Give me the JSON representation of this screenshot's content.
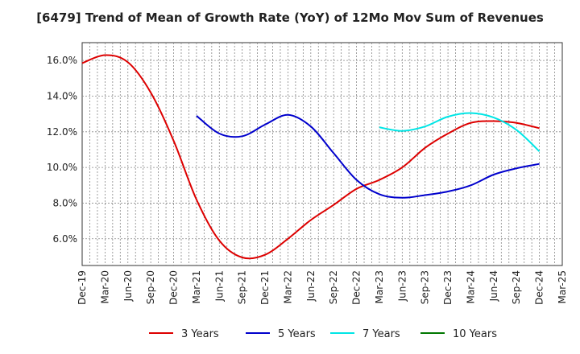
{
  "chart_data": {
    "type": "line",
    "title": "[6479]  Trend of Mean of Growth Rate (YoY) of 12Mo Mov Sum of Revenues",
    "xlabel": "",
    "ylabel": "",
    "x_ticks": [
      "Dec-19",
      "Mar-20",
      "Jun-20",
      "Sep-20",
      "Dec-20",
      "Mar-21",
      "Jun-21",
      "Sep-21",
      "Dec-21",
      "Mar-22",
      "Jun-22",
      "Sep-22",
      "Dec-22",
      "Mar-23",
      "Jun-23",
      "Sep-23",
      "Dec-23",
      "Mar-24",
      "Jun-24",
      "Sep-24",
      "Dec-24",
      "Mar-25"
    ],
    "y_ticks": [
      "6.0%",
      "8.0%",
      "10.0%",
      "12.0%",
      "14.0%",
      "16.0%"
    ],
    "y_tick_values": [
      6,
      8,
      10,
      12,
      14,
      16
    ],
    "ylim": [
      4.5,
      17.0
    ],
    "grid": "dotted",
    "legend_position": "bottom",
    "series": [
      {
        "name": "3 Years",
        "color": "#dd0000",
        "points": [
          [
            0,
            15.85
          ],
          [
            1,
            16.3
          ],
          [
            2,
            15.9
          ],
          [
            3,
            14.2
          ],
          [
            4,
            11.5
          ],
          [
            5,
            8.2
          ],
          [
            6,
            5.9
          ],
          [
            7,
            4.95
          ],
          [
            8,
            5.1
          ],
          [
            9,
            6.0
          ],
          [
            10,
            7.05
          ],
          [
            11,
            7.9
          ],
          [
            12,
            8.8
          ],
          [
            13,
            9.3
          ],
          [
            14,
            10.0
          ],
          [
            15,
            11.1
          ],
          [
            16,
            11.9
          ],
          [
            17,
            12.5
          ],
          [
            18,
            12.6
          ],
          [
            19,
            12.5
          ],
          [
            20,
            12.2
          ]
        ]
      },
      {
        "name": "5 Years",
        "color": "#0000cc",
        "points": [
          [
            5,
            12.9
          ],
          [
            6,
            11.9
          ],
          [
            7,
            11.75
          ],
          [
            8,
            12.4
          ],
          [
            9,
            12.95
          ],
          [
            10,
            12.3
          ],
          [
            11,
            10.8
          ],
          [
            12,
            9.3
          ],
          [
            13,
            8.5
          ],
          [
            14,
            8.3
          ],
          [
            15,
            8.45
          ],
          [
            16,
            8.65
          ],
          [
            17,
            9.0
          ],
          [
            18,
            9.6
          ],
          [
            19,
            9.95
          ],
          [
            20,
            10.2
          ]
        ]
      },
      {
        "name": "7 Years",
        "color": "#00e5e5",
        "points": [
          [
            13,
            12.25
          ],
          [
            14,
            12.05
          ],
          [
            15,
            12.3
          ],
          [
            16,
            12.85
          ],
          [
            17,
            13.05
          ],
          [
            18,
            12.8
          ],
          [
            19,
            12.1
          ],
          [
            20,
            10.9
          ]
        ]
      },
      {
        "name": "10 Years",
        "color": "#007700",
        "points": []
      }
    ]
  }
}
